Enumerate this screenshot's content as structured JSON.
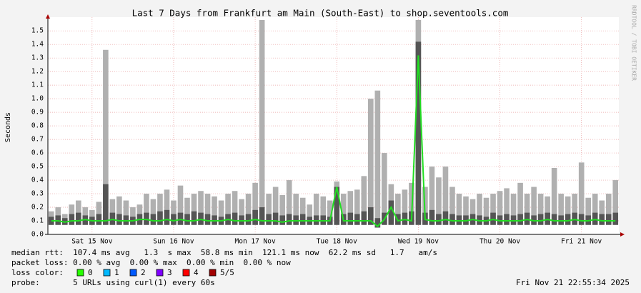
{
  "chart_data": {
    "type": "smokeping",
    "title": "Last 7 Days from Frankfurt am Main (South-East) to shop.seventools.com",
    "y_label": "Seconds",
    "side_note": "RRDTOOL / TOBI OETIKER",
    "xlim": [
      -1,
      167
    ],
    "xticks": [
      {
        "value": 12,
        "label": "Sat 15 Nov"
      },
      {
        "value": 36,
        "label": "Sun 16 Nov"
      },
      {
        "value": 60,
        "label": "Mon 17 Nov"
      },
      {
        "value": 84,
        "label": "Tue 18 Nov"
      },
      {
        "value": 108,
        "label": "Wed 19 Nov"
      },
      {
        "value": 132,
        "label": "Thu 20 Nov"
      },
      {
        "value": 156,
        "label": "Fri 21 Nov"
      }
    ],
    "ylim": [
      0,
      1.58
    ],
    "yticks": [
      {
        "value": 0,
        "label": "0.0"
      },
      0.1,
      0.2,
      0.3,
      0.4,
      0.5,
      0.6,
      0.7,
      0.8,
      0.9,
      {
        "value": 1.0,
        "label": "1.0"
      },
      1.1,
      1.2,
      1.3,
      1.4,
      1.5
    ],
    "grid": true,
    "x": [
      0,
      2,
      4,
      6,
      8,
      10,
      12,
      14,
      16,
      18,
      20,
      22,
      24,
      26,
      28,
      30,
      32,
      34,
      36,
      38,
      40,
      42,
      44,
      46,
      48,
      50,
      52,
      54,
      56,
      58,
      60,
      62,
      64,
      66,
      68,
      70,
      72,
      74,
      76,
      78,
      80,
      82,
      84,
      86,
      88,
      90,
      92,
      94,
      96,
      98,
      100,
      102,
      104,
      106,
      108,
      110,
      112,
      114,
      116,
      118,
      120,
      122,
      124,
      126,
      128,
      130,
      132,
      134,
      136,
      138,
      140,
      142,
      144,
      146,
      148,
      150,
      152,
      154,
      156,
      158,
      160,
      162,
      164,
      166
    ],
    "min_values": [
      0.07,
      0.07,
      0.07,
      0.07,
      0.07,
      0.07,
      0.07,
      0.07,
      0.07,
      0.07,
      0.07,
      0.07,
      0.07,
      0.07,
      0.07,
      0.07,
      0.07,
      0.07,
      0.07,
      0.07,
      0.07,
      0.07,
      0.07,
      0.07,
      0.07,
      0.07,
      0.07,
      0.07,
      0.07,
      0.07,
      0.07,
      0.07,
      0.07,
      0.07,
      0.07,
      0.07,
      0.07,
      0.07,
      0.07,
      0.07,
      0.07,
      0.07,
      0.07,
      0.07,
      0.07,
      0.07,
      0.07,
      0.07,
      0.05,
      0.07,
      0.07,
      0.07,
      0.07,
      0.07,
      0.07,
      0.07,
      0.07,
      0.07,
      0.07,
      0.07,
      0.07,
      0.07,
      0.07,
      0.07,
      0.07,
      0.07,
      0.07,
      0.07,
      0.07,
      0.07,
      0.07,
      0.07,
      0.07,
      0.07,
      0.07,
      0.07,
      0.07,
      0.07,
      0.07,
      0.07,
      0.07,
      0.07,
      0.07,
      0.07
    ],
    "series": [
      {
        "color": "#b0b0b0",
        "values": [
          0.17,
          0.2,
          0.15,
          0.22,
          0.25,
          0.2,
          0.18,
          0.24,
          1.36,
          0.26,
          0.28,
          0.25,
          0.2,
          0.22,
          0.3,
          0.26,
          0.3,
          0.33,
          0.25,
          0.36,
          0.27,
          0.3,
          0.32,
          0.3,
          0.28,
          0.25,
          0.3,
          0.32,
          0.26,
          0.3,
          0.38,
          1.58,
          0.3,
          0.35,
          0.29,
          0.4,
          0.3,
          0.27,
          0.22,
          0.3,
          0.28,
          0.25,
          0.39,
          0.3,
          0.32,
          0.33,
          0.43,
          1.0,
          1.06,
          0.6,
          0.37,
          0.3,
          0.33,
          0.38,
          1.58,
          0.35,
          0.5,
          0.42,
          0.5,
          0.35,
          0.3,
          0.28,
          0.26,
          0.3,
          0.27,
          0.3,
          0.32,
          0.34,
          0.3,
          0.38,
          0.3,
          0.35,
          0.3,
          0.28,
          0.49,
          0.3,
          0.28,
          0.3,
          0.53,
          0.27,
          0.3,
          0.25,
          0.3,
          0.4
        ]
      },
      {
        "color": "#555555",
        "values": [
          0.13,
          0.14,
          0.12,
          0.15,
          0.16,
          0.14,
          0.13,
          0.15,
          0.37,
          0.16,
          0.15,
          0.14,
          0.13,
          0.15,
          0.16,
          0.15,
          0.17,
          0.18,
          0.15,
          0.16,
          0.15,
          0.17,
          0.16,
          0.15,
          0.14,
          0.13,
          0.15,
          0.16,
          0.14,
          0.15,
          0.18,
          0.2,
          0.15,
          0.16,
          0.14,
          0.15,
          0.14,
          0.15,
          0.13,
          0.14,
          0.14,
          0.13,
          0.35,
          0.15,
          0.16,
          0.15,
          0.17,
          0.2,
          0.12,
          0.16,
          0.25,
          0.15,
          0.16,
          0.17,
          1.42,
          0.16,
          0.18,
          0.15,
          0.17,
          0.15,
          0.14,
          0.14,
          0.15,
          0.14,
          0.13,
          0.16,
          0.14,
          0.15,
          0.14,
          0.15,
          0.16,
          0.14,
          0.15,
          0.16,
          0.15,
          0.14,
          0.15,
          0.16,
          0.15,
          0.14,
          0.16,
          0.15,
          0.15,
          0.16
        ]
      },
      {
        "color": "#22dd22",
        "values": [
          0.1,
          0.1,
          0.09,
          0.1,
          0.1,
          0.11,
          0.1,
          0.1,
          0.1,
          0.11,
          0.1,
          0.1,
          0.1,
          0.11,
          0.11,
          0.1,
          0.1,
          0.11,
          0.1,
          0.11,
          0.1,
          0.1,
          0.11,
          0.1,
          0.1,
          0.1,
          0.11,
          0.1,
          0.1,
          0.1,
          0.11,
          0.1,
          0.1,
          0.1,
          0.09,
          0.1,
          0.1,
          0.1,
          0.1,
          0.1,
          0.1,
          0.1,
          0.35,
          0.1,
          0.1,
          0.1,
          0.1,
          0.1,
          0.06,
          0.11,
          0.2,
          0.1,
          0.11,
          0.1,
          1.32,
          0.11,
          0.1,
          0.1,
          0.11,
          0.1,
          0.1,
          0.1,
          0.11,
          0.1,
          0.1,
          0.11,
          0.1,
          0.1,
          0.1,
          0.1,
          0.11,
          0.1,
          0.1,
          0.11,
          0.1,
          0.1,
          0.1,
          0.11,
          0.1,
          0.1,
          0.11,
          0.1,
          0.1,
          0.1
        ]
      }
    ],
    "stats": [
      "median rtt:  107.4 ms avg   1.3  s max  58.8 ms min  121.1 ms now  62.2 ms sd   1.7   am/s",
      "packet loss: 0.00 % avg  0.00 % max  0.00 % min  0.00 % now"
    ],
    "loss_label": "loss color:",
    "loss_legend": [
      {
        "label": "0",
        "color": "#26ff00"
      },
      {
        "label": "1",
        "color": "#00b8ff"
      },
      {
        "label": "2",
        "color": "#0059ff"
      },
      {
        "label": "3",
        "color": "#7e00ff"
      },
      {
        "label": "4",
        "color": "#ff0000"
      },
      {
        "label": "5/5",
        "color": "#a10000"
      }
    ],
    "probe": "probe:       5 URLs using curl(1) every 60s",
    "timestamp": "Fri Nov 21 22:55:34 2025"
  }
}
